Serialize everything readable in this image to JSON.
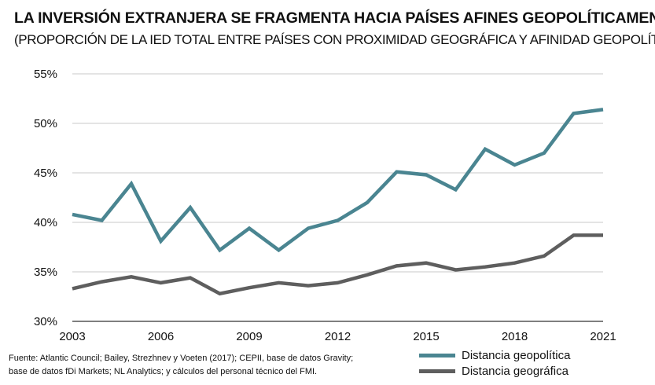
{
  "title": "LA INVERSIÓN EXTRANJERA SE FRAGMENTA HACIA PAÍSES AFINES GEOPOLÍTICAMENTE",
  "subtitle": "(PROPORCIÓN DE LA IED TOTAL ENTRE PAÍSES CON PROXIMIDAD GEOGRÁFICA Y AFINIDAD GEOPOLÍTICA)",
  "source_lines": [
    "Fuente: Atlantic Council; Bailey, Strezhnev y Voeten (2017); CEPII, base de datos Gravity;",
    "base de datos fDi Markets; NL Analytics; y cálculos del personal técnico del FMI."
  ],
  "chart_data": {
    "type": "line",
    "x": [
      2003,
      2004,
      2005,
      2006,
      2007,
      2008,
      2009,
      2010,
      2011,
      2012,
      2013,
      2014,
      2015,
      2016,
      2017,
      2018,
      2019,
      2020,
      2021
    ],
    "x_ticks": [
      "2003",
      "2006",
      "2009",
      "2012",
      "2015",
      "2018",
      "2021"
    ],
    "y_ticks": [
      "30%",
      "35%",
      "40%",
      "45%",
      "50%",
      "55%"
    ],
    "ylim": [
      30,
      55
    ],
    "grid": true,
    "legend_position": "bottom-right",
    "series": [
      {
        "name": "Distancia geopolítica",
        "color": "#4a8591",
        "values": [
          40.8,
          40.2,
          43.9,
          38.1,
          41.5,
          37.2,
          39.4,
          37.2,
          39.4,
          40.2,
          42.0,
          45.1,
          44.8,
          43.3,
          47.4,
          45.8,
          47.0,
          51.0,
          51.4
        ]
      },
      {
        "name": "Distancia geográfica",
        "color": "#5e5e5e",
        "values": [
          33.3,
          34.0,
          34.5,
          33.9,
          34.4,
          32.8,
          33.4,
          33.9,
          33.6,
          33.9,
          34.7,
          35.6,
          35.9,
          35.2,
          35.5,
          35.9,
          36.6,
          38.7,
          38.7
        ]
      }
    ]
  }
}
